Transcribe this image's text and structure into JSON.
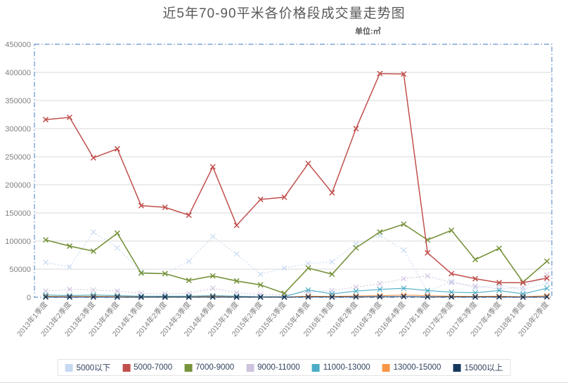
{
  "chart_data": {
    "type": "line",
    "title": "近5年70-90平米各价格段成交量走势图",
    "unit_label": "单位:㎡",
    "xlabel": "",
    "ylabel": "",
    "ylim": [
      0,
      450000
    ],
    "yticks": [
      0,
      50000,
      100000,
      150000,
      200000,
      250000,
      300000,
      350000,
      400000,
      450000
    ],
    "grid": "horizontal",
    "legend_position": "bottom",
    "marker": "x",
    "plot_border_color": "#6591cd",
    "gridline_color": "#d9d9d9",
    "axis_label_color": "#808080",
    "categories": [
      "2013年1季度",
      "2013年2季度",
      "2013年3季度",
      "2013年4季度",
      "2014年1季度",
      "2014年2季度",
      "2014年3季度",
      "2014年4季度",
      "2015年1季度",
      "2015年2季度",
      "2015年3季度",
      "2015年4季度",
      "2016年1季度",
      "2016年2季度",
      "2016年3季度",
      "2016年4季度",
      "2017年1季度",
      "2017年2季度",
      "2017年3季度",
      "2017年4季度",
      "2018年1季度",
      "2018年2季度"
    ],
    "series": [
      {
        "name": "5000以下",
        "color": "#c6d9f1",
        "line_style": "dotted",
        "values": [
          62000,
          54000,
          116000,
          88000,
          45000,
          42000,
          64000,
          108000,
          77000,
          41000,
          52000,
          60000,
          63000,
          95000,
          110000,
          84000,
          10000,
          28000,
          17000,
          22000,
          13000,
          25000
        ]
      },
      {
        "name": "5000-7000",
        "color": "#c0504d",
        "line_style": "solid",
        "values": [
          316000,
          320000,
          248000,
          264000,
          163000,
          160000,
          146000,
          232000,
          128000,
          174000,
          178000,
          238000,
          186000,
          300000,
          398000,
          397000,
          79000,
          42000,
          33000,
          26000,
          26000,
          34000
        ]
      },
      {
        "name": "7000-9000",
        "color": "#77933c",
        "line_style": "solid",
        "values": [
          102000,
          91000,
          82000,
          114000,
          43000,
          42000,
          30000,
          38000,
          29000,
          22000,
          7000,
          52000,
          41000,
          88000,
          116000,
          130000,
          102000,
          119000,
          67000,
          87000,
          27000,
          64000
        ]
      },
      {
        "name": "9000-11000",
        "color": "#cfc3de",
        "line_style": "dotted",
        "values": [
          11000,
          14000,
          13000,
          11000,
          7000,
          6000,
          7000,
          16000,
          8000,
          5000,
          4000,
          9000,
          12000,
          18000,
          24000,
          33000,
          38000,
          26000,
          20000,
          15000,
          18000,
          40000
        ]
      },
      {
        "name": "11000-13000",
        "color": "#4bacc6",
        "line_style": "solid",
        "values": [
          4000,
          3000,
          4000,
          3000,
          2000,
          2000,
          2000,
          3000,
          2000,
          1000,
          1000,
          13000,
          6000,
          11000,
          14000,
          16000,
          12000,
          9000,
          8000,
          12000,
          6000,
          16000
        ]
      },
      {
        "name": "13000-15000",
        "color": "#f79646",
        "line_style": "solid",
        "values": [
          1500,
          1200,
          1500,
          1200,
          800,
          700,
          800,
          1500,
          700,
          500,
          400,
          2000,
          1500,
          2500,
          3000,
          4000,
          3000,
          2000,
          1500,
          2000,
          1000,
          3000
        ]
      },
      {
        "name": "15000以上",
        "color": "#17375e",
        "line_style": "solid",
        "values": [
          500,
          400,
          500,
          400,
          300,
          300,
          300,
          500,
          300,
          200,
          200,
          600,
          500,
          800,
          1000,
          1200,
          800,
          600,
          500,
          600,
          300,
          800
        ]
      }
    ]
  }
}
